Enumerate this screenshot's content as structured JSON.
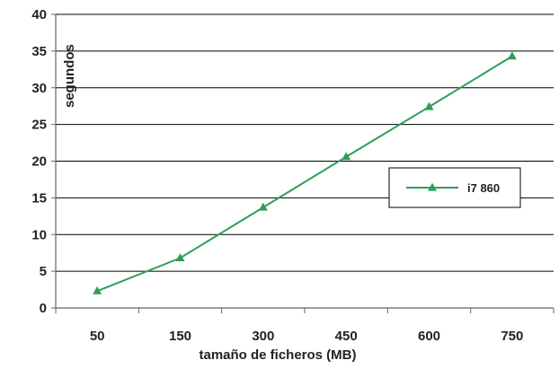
{
  "chart_data": {
    "type": "line",
    "categories": [
      "50",
      "150",
      "300",
      "450",
      "600",
      "750"
    ],
    "series": [
      {
        "name": "i7 860",
        "values": [
          2.3,
          6.8,
          13.7,
          20.6,
          27.4,
          34.3
        ],
        "color": "#2e9e5a",
        "marker": "triangle"
      }
    ],
    "xlabel": "tamaño de ficheros (MB)",
    "ylabel": "segundos",
    "ylim": [
      0,
      40
    ],
    "yticks": [
      0,
      5,
      10,
      15,
      20,
      25,
      30,
      35,
      40
    ],
    "grid": "horizontal",
    "legend_position": "right",
    "colors": {
      "line": "#2e9e5a",
      "grid": "#000000",
      "axis": "#666666"
    }
  }
}
